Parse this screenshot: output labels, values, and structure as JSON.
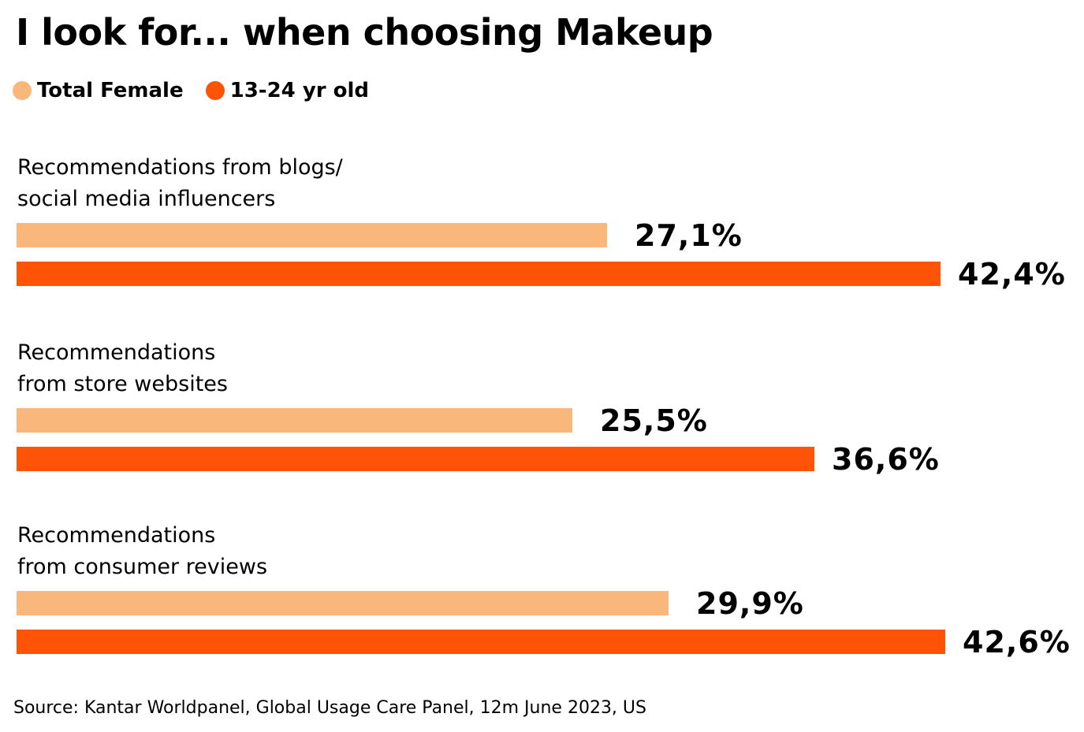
{
  "title": "I look for... when choosing Makeup",
  "legend": [
    {
      "label": "Total Female",
      "color": "#f9b77c"
    },
    {
      "label": "13-24 yr old",
      "color": "#ff5308"
    }
  ],
  "source": "Source: Kantar Worldpanel, Global Usage Care Panel, 12m June 2023, US",
  "chart_data": {
    "type": "bar",
    "orientation": "horizontal",
    "title": "I look for... when choosing Makeup",
    "categories": [
      [
        "Recommendations from blogs/",
        "social media influencers"
      ],
      [
        "Recommendations",
        "from store websites"
      ],
      [
        "Recommendations",
        "from consumer reviews"
      ]
    ],
    "series": [
      {
        "name": "Total Female",
        "color": "#f9b77c",
        "values": [
          27.1,
          25.5,
          29.9
        ],
        "labels": [
          "27,1%",
          "25,5%",
          "29,9%"
        ]
      },
      {
        "name": "13-24 yr old",
        "color": "#ff5308",
        "values": [
          42.4,
          36.6,
          42.6
        ],
        "labels": [
          "42,4%",
          "36,6%",
          "42,6%"
        ]
      }
    ],
    "xlim": [
      0,
      42.6
    ],
    "grid": false,
    "legend_position": "top-left"
  }
}
